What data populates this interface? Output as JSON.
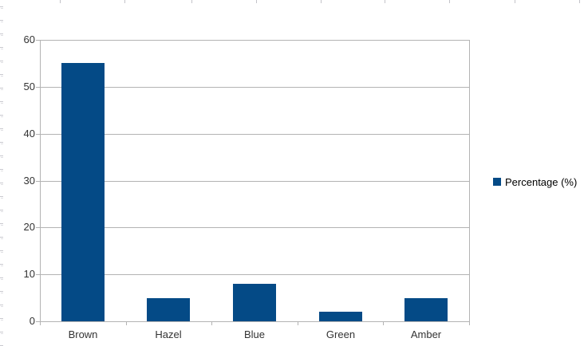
{
  "chart_data": {
    "type": "bar",
    "title": "",
    "xlabel": "",
    "ylabel": "",
    "categories": [
      "Brown",
      "Hazel",
      "Blue",
      "Green",
      "Amber"
    ],
    "series": [
      {
        "name": "Percentage (%)",
        "values": [
          55,
          5,
          8,
          2,
          5
        ]
      }
    ],
    "ylim": [
      0,
      60
    ],
    "yticks": [
      0,
      10,
      20,
      30,
      40,
      50,
      60
    ],
    "grid": "horizontal-only",
    "legend_position": "right",
    "colors": {
      "bar": "#044A86",
      "gridline": "#B3B3B3",
      "axis_text": "#333333",
      "legend_text": "#000000",
      "background": "#FFFFFF"
    }
  }
}
